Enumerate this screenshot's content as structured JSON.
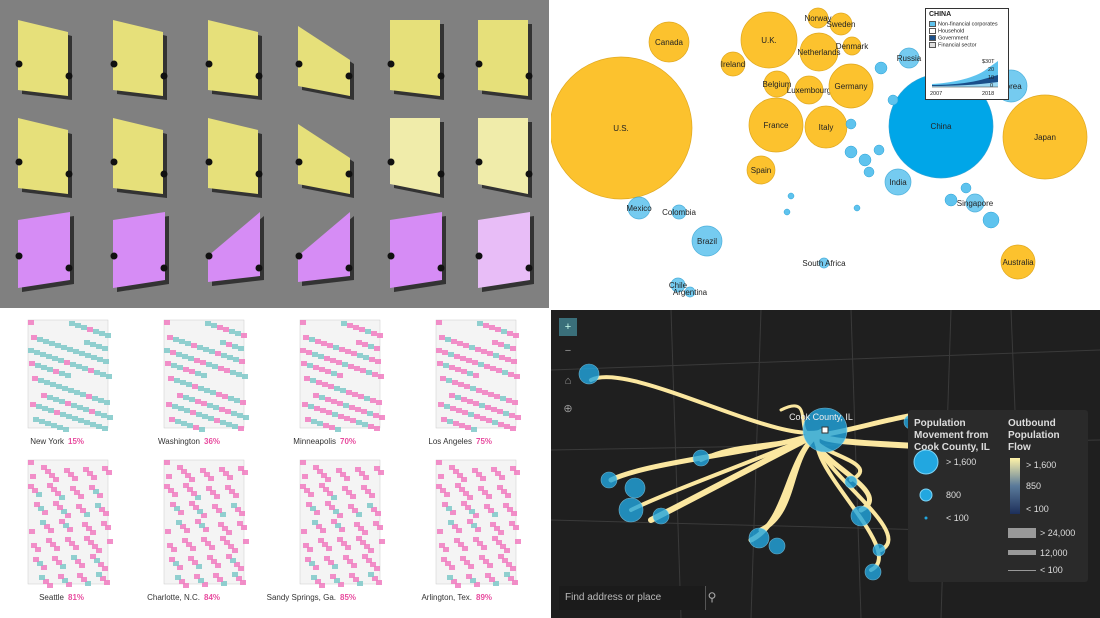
{
  "bubble_map": {
    "countries": [
      {
        "name": "Canada",
        "color": "#fcc22e"
      },
      {
        "name": "U.K.",
        "color": "#fcc22e"
      },
      {
        "name": "Norway",
        "color": "#fcc22e"
      },
      {
        "name": "Sweden",
        "color": "#fcc22e"
      },
      {
        "name": "Ireland",
        "color": "#fcc22e"
      },
      {
        "name": "Netherlands",
        "color": "#fcc22e"
      },
      {
        "name": "Denmark",
        "color": "#fcc22e"
      },
      {
        "name": "Russia",
        "color": "#5ec3ee"
      },
      {
        "name": "Belgium",
        "color": "#fcc22e"
      },
      {
        "name": "Luxembourg",
        "color": "#fcc22e"
      },
      {
        "name": "Germany",
        "color": "#fcc22e"
      },
      {
        "name": "Korea",
        "color": "#5ec3ee"
      },
      {
        "name": "U.S.",
        "color": "#fcc22e"
      },
      {
        "name": "France",
        "color": "#fcc22e"
      },
      {
        "name": "Italy",
        "color": "#fcc22e"
      },
      {
        "name": "China",
        "color": "#00a6e8"
      },
      {
        "name": "Japan",
        "color": "#fcc22e"
      },
      {
        "name": "Spain",
        "color": "#fcc22e"
      },
      {
        "name": "India",
        "color": "#5ec3ee"
      },
      {
        "name": "Mexico",
        "color": "#5ec3ee"
      },
      {
        "name": "Colombia",
        "color": "#5ec3ee"
      },
      {
        "name": "Singapore",
        "color": "#5ec3ee"
      },
      {
        "name": "Brazil",
        "color": "#5ec3ee"
      },
      {
        "name": "South Africa",
        "color": "#5ec3ee"
      },
      {
        "name": "Australia",
        "color": "#fcc22e"
      },
      {
        "name": "Chile",
        "color": "#5ec3ee"
      },
      {
        "name": "Argentina",
        "color": "#5ec3ee"
      }
    ],
    "inset": {
      "title": "CHINA",
      "legend": [
        "Non-financial corporates",
        "Household",
        "Government",
        "Financial sector"
      ],
      "y_ticks": [
        "$30T",
        "20",
        "10",
        "0"
      ],
      "x_ticks": [
        "2007",
        "2018"
      ]
    }
  },
  "cities": [
    {
      "name": "New York",
      "pct": "15%"
    },
    {
      "name": "Washington",
      "pct": "36%"
    },
    {
      "name": "Minneapolis",
      "pct": "70%"
    },
    {
      "name": "Los Angeles",
      "pct": "75%"
    },
    {
      "name": "Seattle",
      "pct": "81%"
    },
    {
      "name": "Charlotte, N.C.",
      "pct": "84%"
    },
    {
      "name": "Sandy Springs, Ga.",
      "pct": "85%"
    },
    {
      "name": "Arlington, Tex.",
      "pct": "89%"
    }
  ],
  "flow_map": {
    "origin_label": "Cook County, IL",
    "legend_title_1": "Population Movement from Cook County, IL",
    "legend_title_2": "Outbound Population Flow",
    "size_labels": [
      "> 1,600",
      "800",
      "< 100"
    ],
    "color_labels": [
      "> 1,600",
      "850",
      "< 100"
    ],
    "width_labels": [
      "> 24,000",
      "12,000",
      "< 100"
    ],
    "search_placeholder": "Find address or place"
  }
}
